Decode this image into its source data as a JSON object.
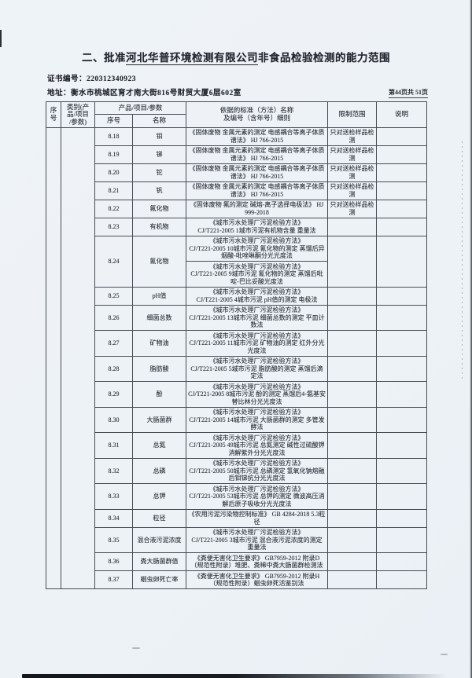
{
  "page": {
    "title_prefix": "二、批准",
    "title_company": "河北华普环境检测有限公司",
    "title_suffix": "非食品检验检测的能力范围",
    "cert_no_label": "证书编号：",
    "cert_no": "220312340923",
    "address_label": "地址：",
    "address": "衡水市桃城区育才南大街816号财贸大厦6层602室",
    "page_info": "第44页共 51页"
  },
  "table": {
    "headers": {
      "seq": "序号",
      "category": "类别(产\n品/项目\n/参数)",
      "product_group": "产品/项目/参数",
      "sub_seq": "序号",
      "sub_name": "名称",
      "standard": "依据的标准（方法）名称\n及编号（含年号）细则",
      "limit": "限制范围",
      "note": "说明"
    },
    "rows": [
      {
        "seq": "8.18",
        "name": "钼",
        "standard": "《固体废物 金属元素的测定 电感耦合等离子体质谱法》 HJ 766-2015",
        "limit": "只对送检样品检测",
        "note": ""
      },
      {
        "seq": "8.19",
        "name": "锑",
        "standard": "《固体废物 金属元素的测定 电感耦合等离子体质谱法》 HJ 766-2015",
        "limit": "只对送检样品检测",
        "note": ""
      },
      {
        "seq": "8.20",
        "name": "铊",
        "standard": "《固体废物 金属元素的测定 电感耦合等离子体质谱法》 HJ 766-2015",
        "limit": "只对送检样品检测",
        "note": ""
      },
      {
        "seq": "8.21",
        "name": "钒",
        "standard": "《固体废物 金属元素的测定 电感耦合等离子体质谱法》 HJ 766-2015",
        "limit": "只对送检样品检测",
        "note": ""
      },
      {
        "seq": "8.22",
        "name": "氟化物",
        "standard": "《固体废物 氟的测定 碱熔-离子选择电极法》 HJ 999-2018",
        "limit": "只对送检样品检测",
        "note": ""
      },
      {
        "seq": "8.23",
        "name": "有机物",
        "standard": "《城市污水处理厂污泥检验方法》\nCJ/T221-2005 1城市污泥有机物含量 重量法",
        "limit": "",
        "note": ""
      },
      {
        "seq": "8.24",
        "name": "氰化物",
        "standards": [
          "《城市污水处理厂污泥检验方法》\nCJ/T221-2005 10城市污泥 氰化物的测定 蒸馏后异烟酸-吡唑啉酮分光光度法",
          "《城市污水处理厂污泥检验方法》\nCJ/T221-2005 9城市污泥 氰化物的测定 蒸馏后吡啶-巴比妥酸光度法"
        ],
        "limit": "",
        "note": ""
      },
      {
        "seq": "8.25",
        "name": "pH值",
        "standard": "《城市污水处理厂污泥检验方法》\nCJ/T221-2005 4城市污泥 pH值的测定 电极法",
        "limit": "",
        "note": ""
      },
      {
        "seq": "8.26",
        "name": "细菌总数",
        "standard": "《城市污水处理厂污泥检验方法》\nCJ/T221-2005 13城市污泥 细菌总数的测定 平皿计数法",
        "limit": "",
        "note": ""
      },
      {
        "seq": "8.27",
        "name": "矿物油",
        "standard": "《城市污水处理厂污泥检验方法》\nCJ/T221-2005 11城市污泥 矿物油的测定 红外分光光度法",
        "limit": "",
        "note": ""
      },
      {
        "seq": "8.28",
        "name": "脂肪酸",
        "standard": "《城市污水处理厂污泥检验方法》\nCJ/T221-2005 5城市污泥 脂肪酸的测定 蒸馏后滴定法",
        "limit": "",
        "note": ""
      },
      {
        "seq": "8.29",
        "name": "酚",
        "standard": "《城市污水处理厂污泥检验方法》\nCJ/T221-2005 8城市污泥 酚的测定 蒸馏后4-氨基安替比林分光光度法",
        "limit": "",
        "note": ""
      },
      {
        "seq": "8.30",
        "name": "大肠菌群",
        "standard": "《城市污水处理厂污泥检验方法》\nCJ/T221-2005 14城市污泥 大肠菌群的测定 多管发酵法",
        "limit": "",
        "note": ""
      },
      {
        "seq": "8.31",
        "name": "总氮",
        "standard": "《城市污水处理厂污泥检验方法》\nCJ/T221-2005 49城市污泥 总氮测定 碱性过硫酸钾消解紫外分光光度法",
        "limit": "",
        "note": ""
      },
      {
        "seq": "8.32",
        "name": "总磷",
        "standard": "《城市污水处理厂污泥检验方法》\nCJ/T221-2005 50城市污泥 总磷测定 氢氧化钠熔融后钼锑抗分光光度法",
        "limit": "",
        "note": ""
      },
      {
        "seq": "8.33",
        "name": "总钾",
        "standard": "《城市污水处理厂污泥检验方法》\nCJ/T221-2005 53城市污泥 总钾的测定 微波高压消解后原子吸收分光光度法",
        "limit": "",
        "note": ""
      },
      {
        "seq": "8.34",
        "name": "粒径",
        "standard": "《农用污泥污染物控制标准》 GB 4284-2018 5.3粒径",
        "limit": "",
        "note": ""
      },
      {
        "seq": "8.35",
        "name": "混合液污泥浓度",
        "standard": "《城市污水处理厂污泥检验方法》\nCJ/T221-2005 3城市污泥 混合液污泥浓度的测定 重量法",
        "limit": "",
        "note": ""
      },
      {
        "seq": "8.36",
        "name": "粪大肠菌群值",
        "standard": "《粪便无害化卫生要求》 GB7959-2012 附录D（规范性附录）堆肥、粪稀中粪大肠菌群检测法",
        "limit": "",
        "note": ""
      },
      {
        "seq": "8.37",
        "name": "蛔虫卵死亡率",
        "standard": "《粪便无害化卫生要求》 GB7959-2012 附录H（规范性附录）蛔虫卵死活鉴别法",
        "limit": "",
        "note": ""
      }
    ]
  }
}
